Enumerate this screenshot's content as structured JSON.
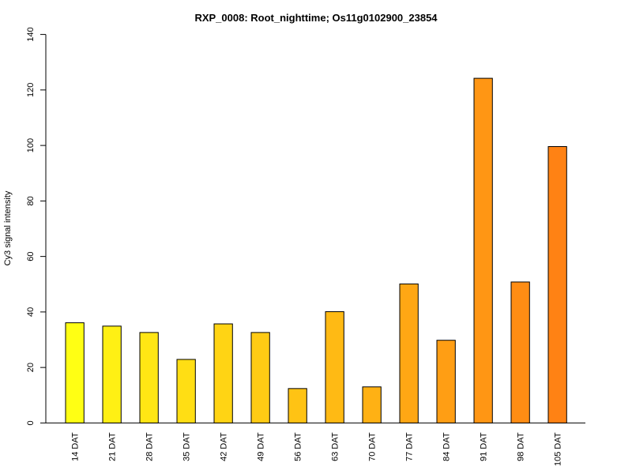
{
  "chart_data": {
    "type": "bar",
    "title": "RXP_0008: Root_nighttime; Os11g0102900_23854",
    "xlabel": "",
    "ylabel": "Cy3 signal intensity",
    "ylim": [
      0,
      140
    ],
    "yticks": [
      0,
      20,
      40,
      60,
      80,
      100,
      120,
      140
    ],
    "categories": [
      "14 DAT",
      "21 DAT",
      "28 DAT",
      "35 DAT",
      "42 DAT",
      "49 DAT",
      "56 DAT",
      "63 DAT",
      "70 DAT",
      "77 DAT",
      "84 DAT",
      "91 DAT",
      "98 DAT",
      "105 DAT"
    ],
    "values": [
      36.1,
      34.9,
      32.6,
      22.9,
      35.7,
      32.6,
      12.4,
      40.1,
      13.0,
      50.1,
      29.8,
      124.2,
      50.8,
      99.6
    ],
    "colors": [
      "#FFFF14",
      "#FFF014",
      "#FFE614",
      "#FFDE14",
      "#FFD414",
      "#FFCB14",
      "#FFC314",
      "#FFBA14",
      "#FFB114",
      "#FFA714",
      "#FF9E14",
      "#FF9614",
      "#FF8D14",
      "#FF8214"
    ],
    "grid": false,
    "legend": "none"
  }
}
